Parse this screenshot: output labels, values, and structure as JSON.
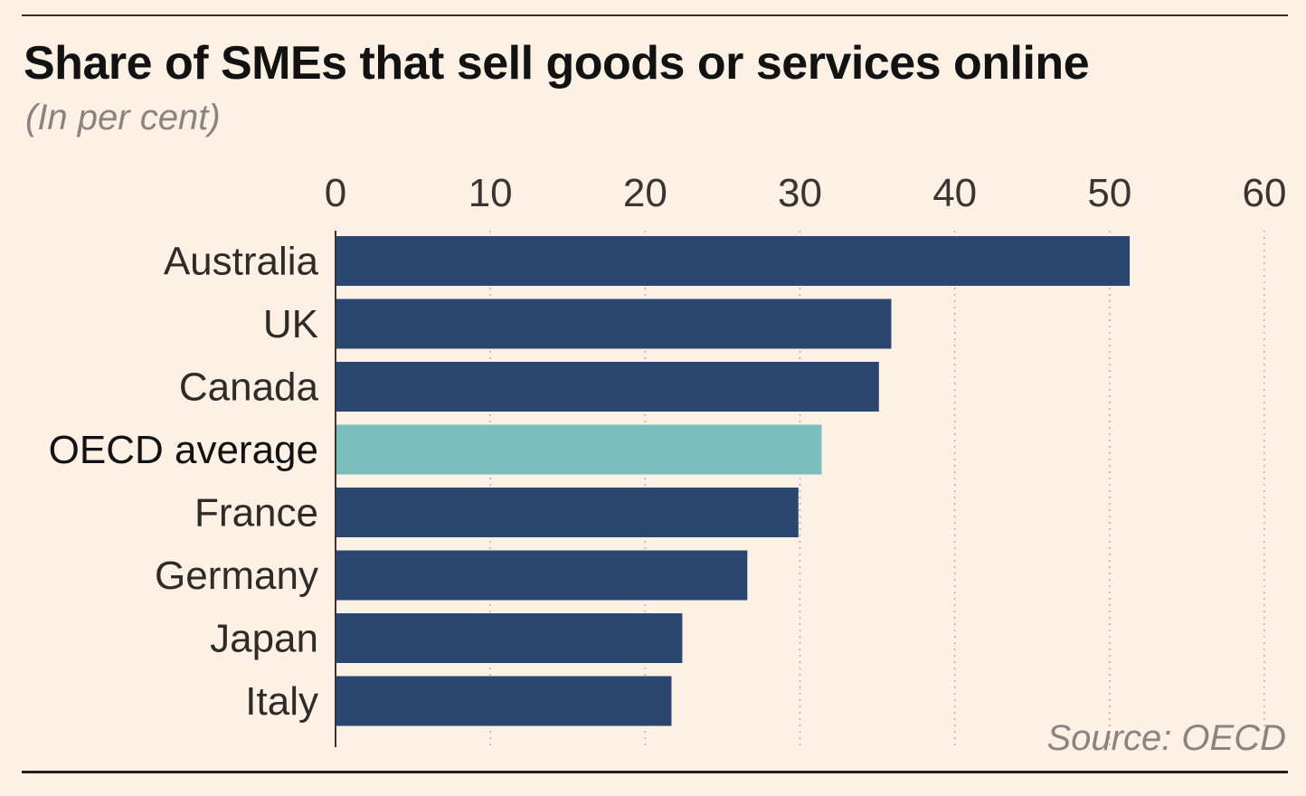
{
  "chart_data": {
    "type": "bar",
    "orientation": "horizontal",
    "title": "Share of SMEs that sell goods or services online",
    "subtitle": "(In per cent)",
    "source": "Source: OECD",
    "categories": [
      "Australia",
      "UK",
      "Canada",
      "OECD average",
      "France",
      "Germany",
      "Japan",
      "Italy"
    ],
    "values": [
      51.3,
      35.9,
      35.1,
      31.4,
      29.9,
      26.6,
      22.4,
      21.7
    ],
    "highlight_category": "OECD average",
    "xlim": [
      0,
      60
    ],
    "xticks": [
      "0",
      "10",
      "20",
      "30",
      "40",
      "50",
      "60"
    ],
    "x_axis_position": "top",
    "grid": "vertical dotted",
    "legend": "none",
    "colors": {
      "bar": "#2b4770",
      "highlight_bar": "#7abfbd",
      "background": "#fdf0e5",
      "gridline": "#b8b0a8",
      "axis": "#3a3532"
    }
  }
}
